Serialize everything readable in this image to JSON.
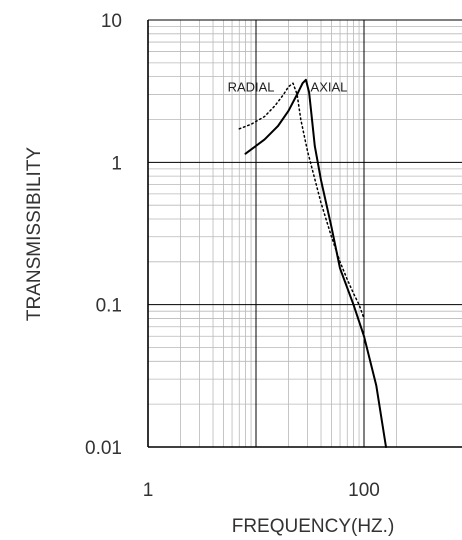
{
  "chart_data": {
    "type": "line",
    "title": "",
    "xlabel": "FREQUENCY(HZ.)",
    "ylabel": "TRANSMISSIBILITY",
    "x_scale": "log",
    "y_scale": "log",
    "xlim": [
      1,
      200
    ],
    "ylim": [
      0.01,
      10
    ],
    "grid": true,
    "x_tick_labels": [
      {
        "value": 1,
        "label": "1"
      },
      {
        "value": 100,
        "label": "100"
      }
    ],
    "y_tick_labels": [
      {
        "value": 10,
        "label": "10"
      },
      {
        "value": 1,
        "label": "1"
      },
      {
        "value": 0.1,
        "label": "0.1"
      },
      {
        "value": 0.01,
        "label": "0.01"
      }
    ],
    "series": [
      {
        "name": "AXIAL",
        "style": "solid",
        "color": "#000000",
        "x": [
          8,
          12,
          16,
          20,
          24,
          27,
          29,
          31,
          33,
          35,
          40,
          50,
          60,
          80,
          100,
          130,
          160
        ],
        "y": [
          1.15,
          1.45,
          1.8,
          2.3,
          3.0,
          3.6,
          3.8,
          3.1,
          2.0,
          1.3,
          0.75,
          0.35,
          0.18,
          0.1,
          0.06,
          0.027,
          0.01
        ]
      },
      {
        "name": "RADIAL",
        "style": "dotted",
        "color": "#000000",
        "x": [
          7,
          9,
          12,
          15,
          18,
          20,
          22,
          24,
          26,
          30,
          40,
          50,
          60,
          70,
          80,
          90,
          100
        ],
        "y": [
          1.72,
          1.85,
          2.1,
          2.5,
          3.0,
          3.4,
          3.6,
          3.0,
          2.0,
          1.2,
          0.52,
          0.3,
          0.2,
          0.15,
          0.12,
          0.1,
          0.08
        ]
      }
    ],
    "annotations": [
      {
        "text": "RADIAL",
        "x": 9,
        "y": 3.4
      },
      {
        "text": "AXIAL",
        "x": 32,
        "y": 3.4
      }
    ]
  }
}
